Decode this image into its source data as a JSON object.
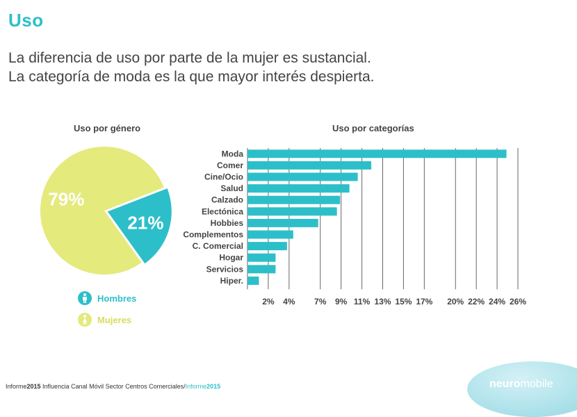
{
  "header": {
    "title": "Uso",
    "subtitle_lines": [
      "La diferencia de uso por parte de la mujer es sustancial.",
      "La categoría de moda es la que mayor interés despierta."
    ]
  },
  "pie": {
    "heading": "Uso por género",
    "legend": [
      {
        "label": "Hombres",
        "color": "#2dbfc9",
        "icon": "man-icon"
      },
      {
        "label": "Mujeres",
        "color": "#e4ea7c",
        "icon": "woman-icon"
      }
    ]
  },
  "bars": {
    "heading": "Uso por categorías"
  },
  "chart_data": [
    {
      "type": "pie",
      "title": "Uso por género",
      "slices": [
        {
          "name": "Hombres",
          "value": 21,
          "label": "21%",
          "color": "#2dbfc9"
        },
        {
          "name": "Mujeres",
          "value": 79,
          "label": "79%",
          "color": "#e4ea7c"
        }
      ]
    },
    {
      "type": "bar",
      "orientation": "horizontal",
      "title": "Uso por categorías",
      "categories": [
        "Moda",
        "Comer",
        "Cine/Ocio",
        "Salud",
        "Calzado",
        "Electónica",
        "Hobbies",
        "Complementos",
        "C. Comercial",
        "Hogar",
        "Servicios",
        "Hiper."
      ],
      "values": [
        24.9,
        11.9,
        10.6,
        9.8,
        8.9,
        8.6,
        6.8,
        4.4,
        3.8,
        2.7,
        2.7,
        1.1
      ],
      "xticks": [
        2,
        4,
        7,
        9,
        11,
        13,
        15,
        17,
        20,
        22,
        24,
        26
      ],
      "xtick_labels": [
        "2%",
        "4%",
        "7%",
        "9%",
        "11%",
        "13%",
        "15%",
        "17%",
        "20%",
        "22%",
        "24%",
        "26%"
      ],
      "xlim": [
        0,
        26
      ],
      "grid": true,
      "color": "#2dbfc9"
    }
  ],
  "footer": {
    "prefix": "Informe",
    "year": "2015",
    "text": " Influencia Canal Móvil Sector Centros Comerciales/",
    "link_prefix": "Informe",
    "link_year": "2015"
  },
  "brand": {
    "bold": "neuro",
    "light": "mobile"
  }
}
